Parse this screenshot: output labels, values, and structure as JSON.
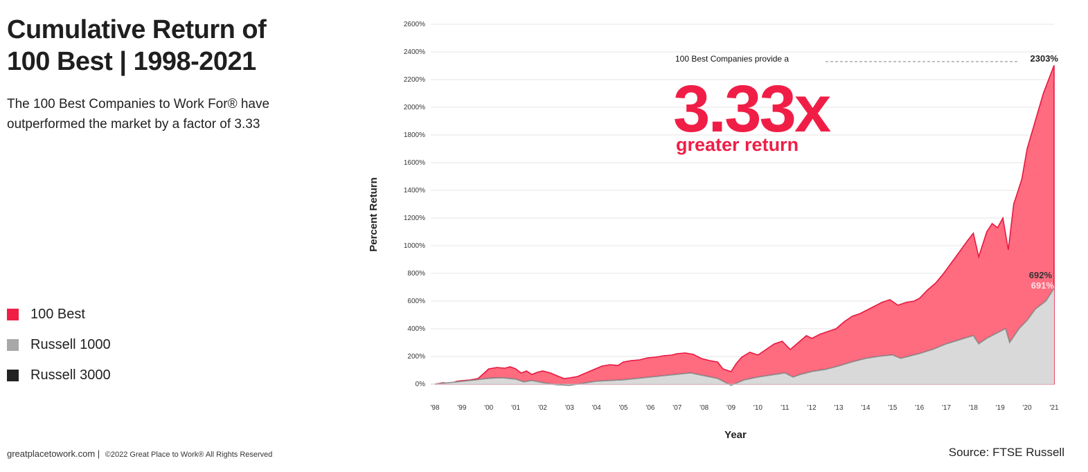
{
  "header": {
    "title_line1": "Cumulative Return of",
    "title_line2": "100 Best | 1998-2021",
    "subtitle": "The 100 Best  Companies to Work For® have outperformed the market by a factor of 3.33"
  },
  "legend": [
    {
      "label": "100 Best",
      "color": "#f01e46"
    },
    {
      "label": "Russell 1000",
      "color": "#a8a8a8"
    },
    {
      "label": "Russell 3000",
      "color": "#222222"
    }
  ],
  "footer": {
    "site": "greatplacetowork.com |",
    "copyright": "©2022 Great Place to Work® All Rights Reserved",
    "source": "Source: FTSE Russell"
  },
  "annotations": {
    "provide": "100 Best Companies provide a",
    "big": "3.33x",
    "greater": "greater return",
    "end_best": "2303%",
    "end_r3000": "692%",
    "end_r1000": "691%"
  },
  "colors": {
    "best_fill": "#ff6b7f",
    "best_line": "#e8173f",
    "russell_fill": "#d9d9d9",
    "russell_line": "#6e6e6e",
    "grid": "#e6e6e6"
  },
  "chart_data": {
    "type": "area",
    "xlabel": "Year",
    "ylabel": "Percent Return",
    "ylim": [
      0,
      2600
    ],
    "xlim": [
      1998,
      2021
    ],
    "yticks": [
      0,
      200,
      400,
      600,
      800,
      1000,
      1200,
      1400,
      1600,
      1800,
      2000,
      2200,
      2400,
      2600
    ],
    "ytick_labels": [
      "0%",
      "200%",
      "400%",
      "600%",
      "800%",
      "1000%",
      "1200%",
      "1400%",
      "1600%",
      "1800%",
      "2000%",
      "2200%",
      "2400%",
      "2600%"
    ],
    "xticks": [
      1998,
      1999,
      2000,
      2001,
      2002,
      2003,
      2004,
      2005,
      2006,
      2007,
      2008,
      2009,
      2010,
      2011,
      2012,
      2013,
      2014,
      2015,
      2016,
      2017,
      2018,
      2019,
      2020,
      2021
    ],
    "xtick_labels": [
      "'98",
      "'99",
      "'00",
      "'01",
      "'02",
      "'03",
      "'04",
      "'05",
      "'06",
      "'07",
      "'08",
      "'09",
      "'10",
      "'11",
      "'12",
      "'13",
      "'14",
      "'15",
      "'16",
      "'17",
      "'18",
      "'19",
      "'20",
      "'21"
    ],
    "grid": true,
    "series": [
      {
        "name": "100 Best",
        "points": [
          [
            1998.0,
            0
          ],
          [
            1998.3,
            10
          ],
          [
            1998.6,
            5
          ],
          [
            1998.8,
            20
          ],
          [
            1999.0,
            25
          ],
          [
            1999.3,
            30
          ],
          [
            1999.6,
            40
          ],
          [
            1999.8,
            75
          ],
          [
            2000.0,
            110
          ],
          [
            2000.3,
            120
          ],
          [
            2000.6,
            115
          ],
          [
            2000.8,
            125
          ],
          [
            2001.0,
            110
          ],
          [
            2001.2,
            80
          ],
          [
            2001.4,
            95
          ],
          [
            2001.6,
            70
          ],
          [
            2001.8,
            85
          ],
          [
            2002.0,
            95
          ],
          [
            2002.3,
            80
          ],
          [
            2002.6,
            55
          ],
          [
            2002.8,
            40
          ],
          [
            2003.0,
            45
          ],
          [
            2003.3,
            55
          ],
          [
            2003.6,
            80
          ],
          [
            2003.9,
            105
          ],
          [
            2004.2,
            130
          ],
          [
            2004.5,
            140
          ],
          [
            2004.8,
            135
          ],
          [
            2005.0,
            160
          ],
          [
            2005.3,
            170
          ],
          [
            2005.6,
            175
          ],
          [
            2005.9,
            190
          ],
          [
            2006.2,
            195
          ],
          [
            2006.5,
            205
          ],
          [
            2006.8,
            210
          ],
          [
            2007.0,
            220
          ],
          [
            2007.3,
            225
          ],
          [
            2007.6,
            215
          ],
          [
            2007.9,
            185
          ],
          [
            2008.2,
            170
          ],
          [
            2008.5,
            160
          ],
          [
            2008.7,
            110
          ],
          [
            2009.0,
            90
          ],
          [
            2009.2,
            150
          ],
          [
            2009.4,
            195
          ],
          [
            2009.7,
            230
          ],
          [
            2010.0,
            210
          ],
          [
            2010.3,
            250
          ],
          [
            2010.6,
            290
          ],
          [
            2010.9,
            310
          ],
          [
            2011.2,
            250
          ],
          [
            2011.5,
            300
          ],
          [
            2011.8,
            350
          ],
          [
            2012.0,
            330
          ],
          [
            2012.3,
            360
          ],
          [
            2012.6,
            380
          ],
          [
            2012.9,
            400
          ],
          [
            2013.2,
            450
          ],
          [
            2013.5,
            490
          ],
          [
            2013.8,
            510
          ],
          [
            2014.0,
            530
          ],
          [
            2014.3,
            560
          ],
          [
            2014.6,
            590
          ],
          [
            2014.9,
            610
          ],
          [
            2015.2,
            570
          ],
          [
            2015.5,
            590
          ],
          [
            2015.8,
            600
          ],
          [
            2016.0,
            620
          ],
          [
            2016.3,
            680
          ],
          [
            2016.6,
            730
          ],
          [
            2016.9,
            800
          ],
          [
            2017.2,
            880
          ],
          [
            2017.5,
            960
          ],
          [
            2017.8,
            1040
          ],
          [
            2018.0,
            1090
          ],
          [
            2018.2,
            920
          ],
          [
            2018.5,
            1100
          ],
          [
            2018.7,
            1160
          ],
          [
            2018.9,
            1130
          ],
          [
            2019.1,
            1200
          ],
          [
            2019.3,
            970
          ],
          [
            2019.5,
            1300
          ],
          [
            2019.8,
            1480
          ],
          [
            2020.0,
            1700
          ],
          [
            2020.3,
            1900
          ],
          [
            2020.6,
            2100
          ],
          [
            2021.0,
            2303
          ]
        ]
      },
      {
        "name": "Russell 1000",
        "points": [
          [
            1998.0,
            0
          ],
          [
            1998.5,
            10
          ],
          [
            1999.0,
            20
          ],
          [
            1999.5,
            30
          ],
          [
            2000.0,
            40
          ],
          [
            2000.5,
            45
          ],
          [
            2001.0,
            35
          ],
          [
            2001.3,
            15
          ],
          [
            2001.6,
            25
          ],
          [
            2002.0,
            10
          ],
          [
            2002.5,
            -5
          ],
          [
            2003.0,
            -10
          ],
          [
            2003.5,
            5
          ],
          [
            2004.0,
            20
          ],
          [
            2004.5,
            25
          ],
          [
            2005.0,
            30
          ],
          [
            2005.5,
            40
          ],
          [
            2006.0,
            50
          ],
          [
            2006.5,
            60
          ],
          [
            2007.0,
            70
          ],
          [
            2007.5,
            80
          ],
          [
            2008.0,
            60
          ],
          [
            2008.5,
            40
          ],
          [
            2009.0,
            -10
          ],
          [
            2009.5,
            30
          ],
          [
            2010.0,
            50
          ],
          [
            2010.5,
            65
          ],
          [
            2011.0,
            80
          ],
          [
            2011.3,
            50
          ],
          [
            2011.6,
            70
          ],
          [
            2012.0,
            90
          ],
          [
            2012.5,
            105
          ],
          [
            2013.0,
            130
          ],
          [
            2013.5,
            160
          ],
          [
            2014.0,
            185
          ],
          [
            2014.5,
            200
          ],
          [
            2015.0,
            210
          ],
          [
            2015.3,
            185
          ],
          [
            2015.6,
            200
          ],
          [
            2016.0,
            220
          ],
          [
            2016.5,
            250
          ],
          [
            2017.0,
            290
          ],
          [
            2017.5,
            320
          ],
          [
            2018.0,
            350
          ],
          [
            2018.2,
            290
          ],
          [
            2018.5,
            330
          ],
          [
            2018.8,
            360
          ],
          [
            2019.0,
            380
          ],
          [
            2019.2,
            400
          ],
          [
            2019.35,
            300
          ],
          [
            2019.7,
            400
          ],
          [
            2020.0,
            460
          ],
          [
            2020.3,
            540
          ],
          [
            2020.7,
            600
          ],
          [
            2021.0,
            691
          ]
        ]
      },
      {
        "name": "Russell 3000",
        "points": [
          [
            1998.0,
            0
          ],
          [
            1998.5,
            10
          ],
          [
            1999.0,
            20
          ],
          [
            1999.5,
            30
          ],
          [
            2000.0,
            42
          ],
          [
            2000.5,
            46
          ],
          [
            2001.0,
            36
          ],
          [
            2001.3,
            16
          ],
          [
            2001.6,
            26
          ],
          [
            2002.0,
            11
          ],
          [
            2002.5,
            -4
          ],
          [
            2003.0,
            -9
          ],
          [
            2003.5,
            6
          ],
          [
            2004.0,
            21
          ],
          [
            2004.5,
            26
          ],
          [
            2005.0,
            31
          ],
          [
            2005.5,
            41
          ],
          [
            2006.0,
            51
          ],
          [
            2006.5,
            61
          ],
          [
            2007.0,
            71
          ],
          [
            2007.5,
            81
          ],
          [
            2008.0,
            61
          ],
          [
            2008.5,
            41
          ],
          [
            2009.0,
            -9
          ],
          [
            2009.5,
            31
          ],
          [
            2010.0,
            51
          ],
          [
            2010.5,
            66
          ],
          [
            2011.0,
            81
          ],
          [
            2011.3,
            51
          ],
          [
            2011.6,
            71
          ],
          [
            2012.0,
            91
          ],
          [
            2012.5,
            106
          ],
          [
            2013.0,
            131
          ],
          [
            2013.5,
            161
          ],
          [
            2014.0,
            186
          ],
          [
            2014.5,
            201
          ],
          [
            2015.0,
            211
          ],
          [
            2015.3,
            186
          ],
          [
            2015.6,
            201
          ],
          [
            2016.0,
            221
          ],
          [
            2016.5,
            251
          ],
          [
            2017.0,
            291
          ],
          [
            2017.5,
            321
          ],
          [
            2018.0,
            351
          ],
          [
            2018.2,
            291
          ],
          [
            2018.5,
            331
          ],
          [
            2018.8,
            361
          ],
          [
            2019.0,
            381
          ],
          [
            2019.2,
            401
          ],
          [
            2019.35,
            301
          ],
          [
            2019.7,
            401
          ],
          [
            2020.0,
            461
          ],
          [
            2020.3,
            541
          ],
          [
            2020.7,
            601
          ],
          [
            2021.0,
            692
          ]
        ]
      }
    ]
  }
}
